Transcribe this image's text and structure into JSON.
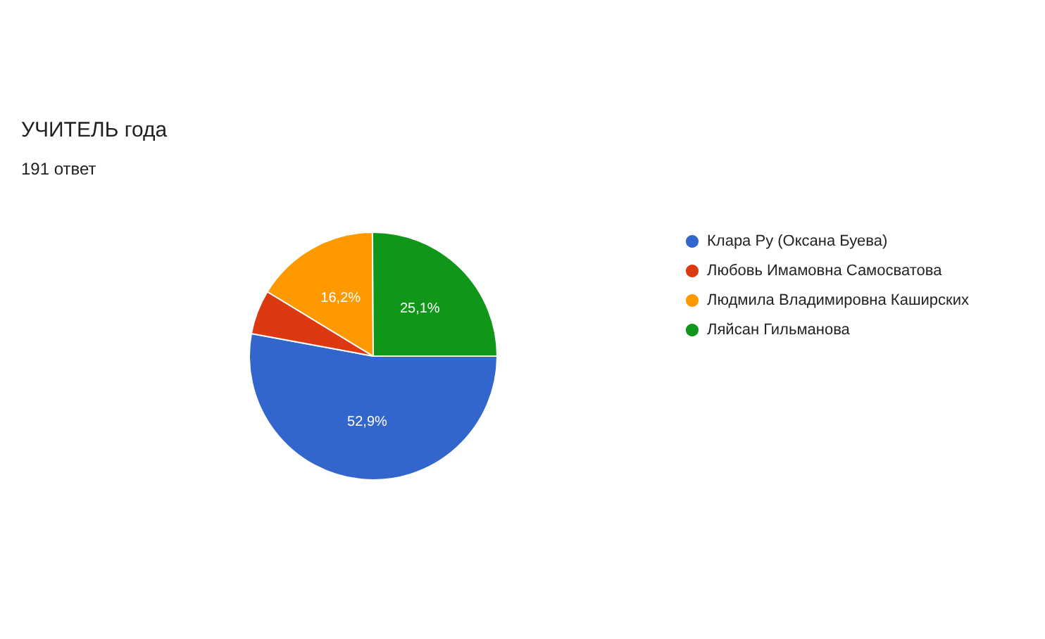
{
  "chart_data": {
    "type": "pie",
    "title": "УЧИТЕЛЬ года",
    "subtitle": "191 ответ",
    "categories": [
      "Клара Ру (Оксана Буева)",
      "Любовь Имамовна Самосватова",
      "Людмила Владимировна Каширских",
      "Ляйсан Гильманова"
    ],
    "values": [
      52.9,
      5.8,
      16.2,
      25.1
    ],
    "colors": [
      "#3366cc",
      "#dc3912",
      "#ff9900",
      "#109618"
    ],
    "value_labels": [
      "52,9%",
      null,
      "16,2%",
      "25,1%"
    ],
    "legend": "right"
  }
}
